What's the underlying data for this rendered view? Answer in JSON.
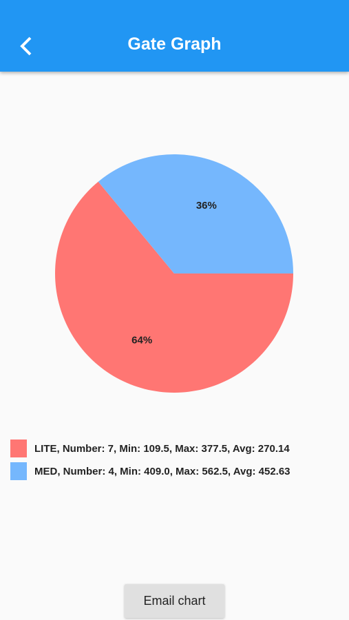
{
  "header": {
    "title": "Gate Graph"
  },
  "chart_data": {
    "type": "pie",
    "categories": [
      "LITE, Number: 7, Min: 109.5, Max: 377.5, Avg: 270.14",
      "MED, Number: 4, Min: 409.0, Max: 562.5, Avg: 452.63"
    ],
    "values": [
      64,
      36
    ],
    "value_labels": [
      "64%",
      "36%"
    ],
    "colors": [
      "#ff7673",
      "#75b7fd"
    ]
  },
  "button": {
    "label": "Email chart"
  }
}
